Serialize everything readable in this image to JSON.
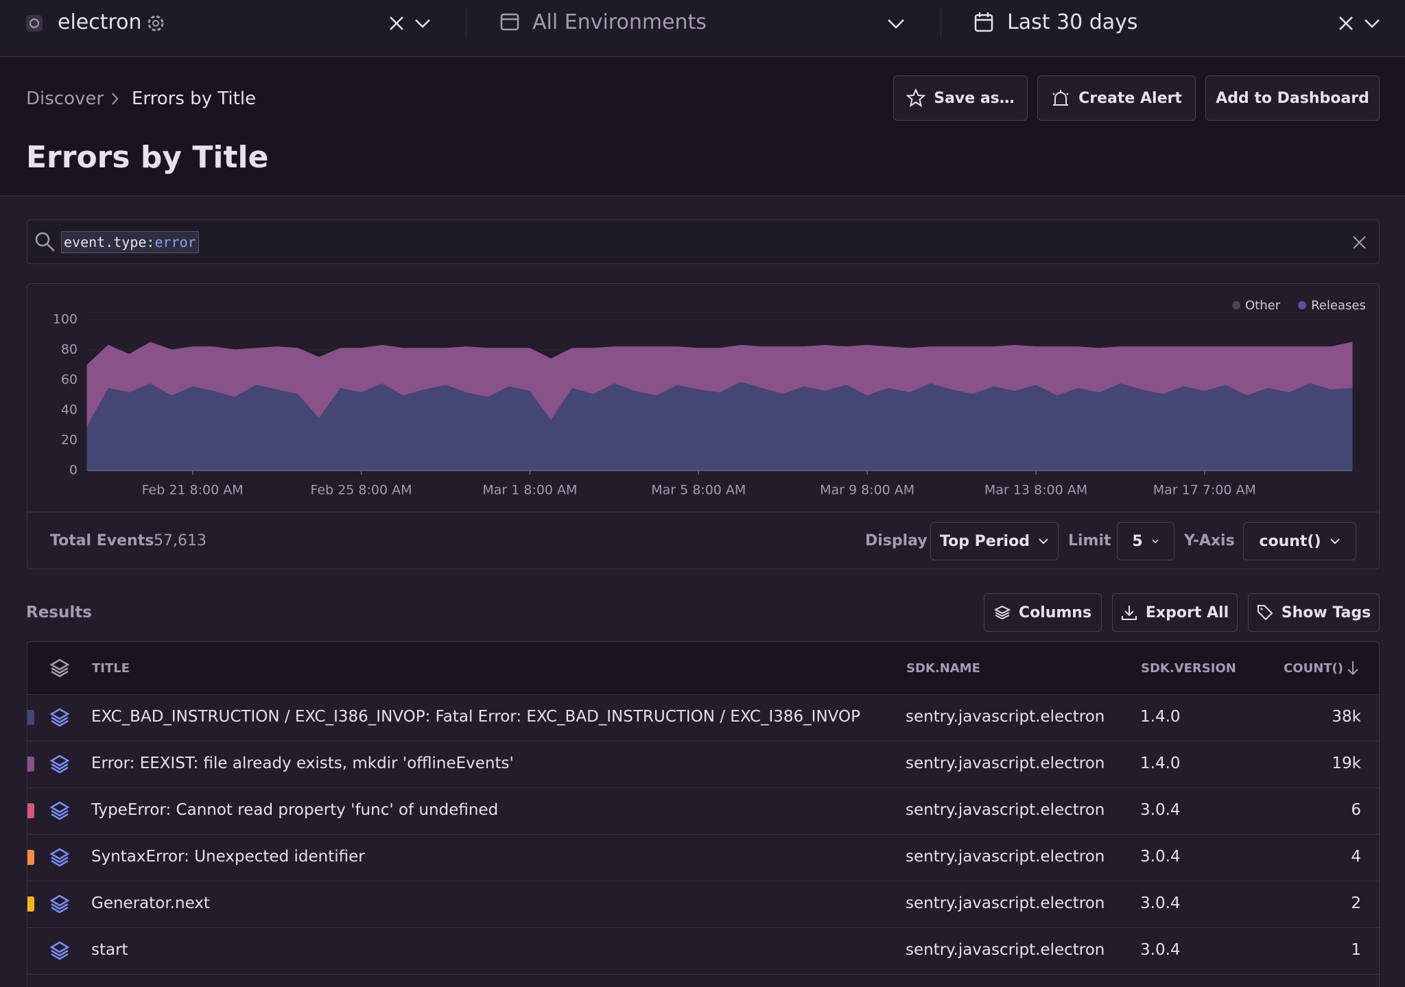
{
  "header": {
    "project": "electron",
    "environment": "All Environments",
    "date_range": "Last 30 days"
  },
  "breadcrumb": [
    "Discover",
    "Errors by Title"
  ],
  "title": "Errors by Title",
  "actions": [
    "Save as…",
    "Create Alert",
    "Add to Dashboard"
  ],
  "search": {
    "key": "event.type:",
    "value": "error"
  },
  "chart_data": {
    "type": "area",
    "stacked": true,
    "ylim": [
      0,
      100
    ],
    "yticks": [
      0,
      20,
      40,
      60,
      80,
      100
    ],
    "grid": true,
    "legend": [
      {
        "label": "Other",
        "color": "#4b4456"
      },
      {
        "label": "Releases",
        "color": "#5a4fa0"
      }
    ],
    "categories": [
      null,
      null,
      null,
      null,
      null,
      "Feb 21 8:00 AM",
      null,
      null,
      null,
      null,
      null,
      null,
      null,
      "Feb 25 8:00 AM",
      null,
      null,
      null,
      null,
      null,
      null,
      null,
      "Mar 1 8:00 AM",
      null,
      null,
      null,
      null,
      null,
      null,
      null,
      "Mar 5 8:00 AM",
      null,
      null,
      null,
      null,
      null,
      null,
      null,
      "Mar 9 8:00 AM",
      null,
      null,
      null,
      null,
      null,
      null,
      null,
      "Mar 13 8:00 AM",
      null,
      null,
      null,
      null,
      null,
      null,
      null,
      "Mar 17 7:00 AM",
      null,
      null,
      null,
      null,
      null,
      null,
      null
    ],
    "series": [
      {
        "color": "#444674",
        "values": [
          30,
          55,
          52,
          58,
          50,
          56,
          53,
          49,
          57,
          54,
          51,
          35,
          55,
          52,
          58,
          50,
          54,
          57,
          52,
          49,
          56,
          53,
          34,
          55,
          51,
          58,
          53,
          50,
          57,
          54,
          52,
          59,
          55,
          51,
          56,
          53,
          57,
          50,
          55,
          52,
          58,
          54,
          51,
          56,
          53,
          57,
          50,
          55,
          52,
          58,
          54,
          51,
          56,
          53,
          57,
          50,
          55,
          52,
          58,
          54,
          55
        ]
      },
      {
        "color": "#895289",
        "values": [
          40,
          28,
          25,
          27,
          30,
          26,
          29,
          31,
          24,
          28,
          30,
          40,
          26,
          29,
          25,
          31,
          27,
          24,
          30,
          32,
          25,
          28,
          40,
          26,
          30,
          24,
          29,
          32,
          25,
          27,
          29,
          24,
          27,
          31,
          26,
          30,
          25,
          33,
          27,
          29,
          24,
          28,
          31,
          26,
          30,
          25,
          32,
          27,
          29,
          24,
          28,
          31,
          26,
          29,
          25,
          32,
          27,
          30,
          24,
          28,
          30
        ]
      }
    ]
  },
  "chart_footer": {
    "total_label": "Total Events",
    "total": "57,613",
    "display_label": "Display",
    "display": "Top Period",
    "limit_label": "Limit",
    "limit": "5",
    "yaxis_label": "Y-Axis",
    "yaxis": "count()"
  },
  "results": {
    "label": "Results",
    "buttons": [
      "Columns",
      "Export All",
      "Show Tags"
    ]
  },
  "table": {
    "columns": [
      "TITLE",
      "SDK.NAME",
      "SDK.VERSION",
      "COUNT()"
    ],
    "row_colors": [
      "#444674",
      "#895289",
      "#d6567f",
      "#f58c46",
      "#f2b712",
      null
    ],
    "rows": [
      [
        "EXC_BAD_INSTRUCTION / EXC_I386_INVOP: Fatal Error: EXC_BAD_INSTRUCTION / EXC_I386_INVOP",
        "sentry.javascript.electron",
        "1.4.0",
        "38k"
      ],
      [
        "Error: EEXIST: file already exists, mkdir 'offlineEvents'",
        "sentry.javascript.electron",
        "1.4.0",
        "19k"
      ],
      [
        "TypeError: Cannot read property 'func' of undefined",
        "sentry.javascript.electron",
        "3.0.4",
        "6"
      ],
      [
        "SyntaxError: Unexpected identifier",
        "sentry.javascript.electron",
        "3.0.4",
        "4"
      ],
      [
        "Generator.next",
        "sentry.javascript.electron",
        "3.0.4",
        "2"
      ],
      [
        "start",
        "sentry.javascript.electron",
        "3.0.4",
        "1"
      ]
    ]
  }
}
